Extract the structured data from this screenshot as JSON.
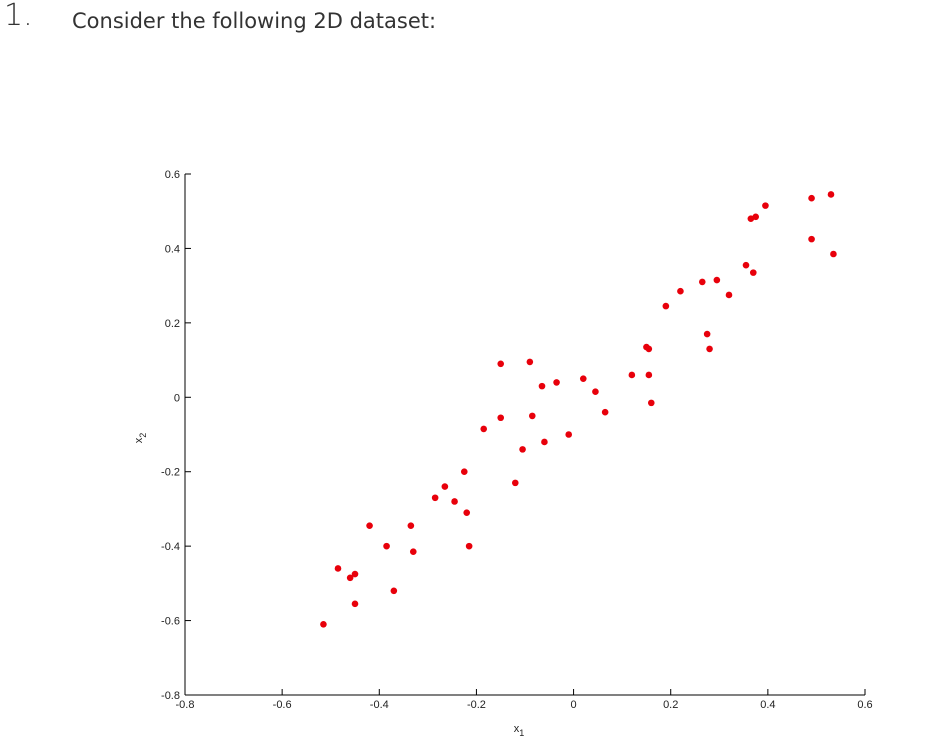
{
  "question": {
    "number": "1.",
    "text": "Consider the following 2D dataset:"
  },
  "chart_data": {
    "type": "scatter",
    "title": "",
    "xlabel_main": "x",
    "xlabel_sub": "1",
    "ylabel_main": "x",
    "ylabel_sub": "2",
    "xlim": [
      -0.8,
      0.6
    ],
    "ylim": [
      -0.8,
      0.6
    ],
    "xticks": [
      -0.8,
      -0.6,
      -0.4,
      -0.2,
      0,
      0.2,
      0.4,
      0.6
    ],
    "xtick_labels": [
      "-0.8",
      "-0.6",
      "-0.4",
      "-0.2",
      "0",
      "0.2",
      "0.4",
      "0.6"
    ],
    "yticks": [
      -0.8,
      -0.6,
      -0.4,
      -0.2,
      0,
      0.2,
      0.4,
      0.6
    ],
    "ytick_labels": [
      "-0.8",
      "-0.6",
      "-0.4",
      "-0.2",
      "0",
      "0.2",
      "0.4",
      "0.6"
    ],
    "grid": false,
    "marker_color": "#e8000b",
    "points": [
      {
        "x": -0.515,
        "y": -0.61
      },
      {
        "x": -0.485,
        "y": -0.46
      },
      {
        "x": -0.46,
        "y": -0.485
      },
      {
        "x": -0.45,
        "y": -0.475
      },
      {
        "x": -0.45,
        "y": -0.555
      },
      {
        "x": -0.42,
        "y": -0.345
      },
      {
        "x": -0.385,
        "y": -0.4
      },
      {
        "x": -0.37,
        "y": -0.52
      },
      {
        "x": -0.335,
        "y": -0.345
      },
      {
        "x": -0.33,
        "y": -0.415
      },
      {
        "x": -0.285,
        "y": -0.27
      },
      {
        "x": -0.265,
        "y": -0.24
      },
      {
        "x": -0.245,
        "y": -0.28
      },
      {
        "x": -0.225,
        "y": -0.2
      },
      {
        "x": -0.22,
        "y": -0.31
      },
      {
        "x": -0.215,
        "y": -0.4
      },
      {
        "x": -0.185,
        "y": -0.085
      },
      {
        "x": -0.15,
        "y": 0.09
      },
      {
        "x": -0.15,
        "y": -0.055
      },
      {
        "x": -0.12,
        "y": -0.23
      },
      {
        "x": -0.105,
        "y": -0.14
      },
      {
        "x": -0.09,
        "y": 0.095
      },
      {
        "x": -0.085,
        "y": -0.05
      },
      {
        "x": -0.065,
        "y": 0.03
      },
      {
        "x": -0.06,
        "y": -0.12
      },
      {
        "x": -0.035,
        "y": 0.04
      },
      {
        "x": -0.01,
        "y": -0.1
      },
      {
        "x": 0.02,
        "y": 0.05
      },
      {
        "x": 0.045,
        "y": 0.015
      },
      {
        "x": 0.065,
        "y": -0.04
      },
      {
        "x": 0.12,
        "y": 0.06
      },
      {
        "x": 0.15,
        "y": 0.135
      },
      {
        "x": 0.155,
        "y": 0.13
      },
      {
        "x": 0.155,
        "y": 0.06
      },
      {
        "x": 0.16,
        "y": -0.015
      },
      {
        "x": 0.19,
        "y": 0.245
      },
      {
        "x": 0.22,
        "y": 0.285
      },
      {
        "x": 0.265,
        "y": 0.31
      },
      {
        "x": 0.275,
        "y": 0.17
      },
      {
        "x": 0.28,
        "y": 0.13
      },
      {
        "x": 0.295,
        "y": 0.315
      },
      {
        "x": 0.32,
        "y": 0.275
      },
      {
        "x": 0.355,
        "y": 0.355
      },
      {
        "x": 0.365,
        "y": 0.48
      },
      {
        "x": 0.37,
        "y": 0.335
      },
      {
        "x": 0.375,
        "y": 0.485
      },
      {
        "x": 0.395,
        "y": 0.515
      },
      {
        "x": 0.49,
        "y": 0.535
      },
      {
        "x": 0.49,
        "y": 0.425
      },
      {
        "x": 0.53,
        "y": 0.545
      },
      {
        "x": 0.535,
        "y": 0.385
      }
    ]
  }
}
